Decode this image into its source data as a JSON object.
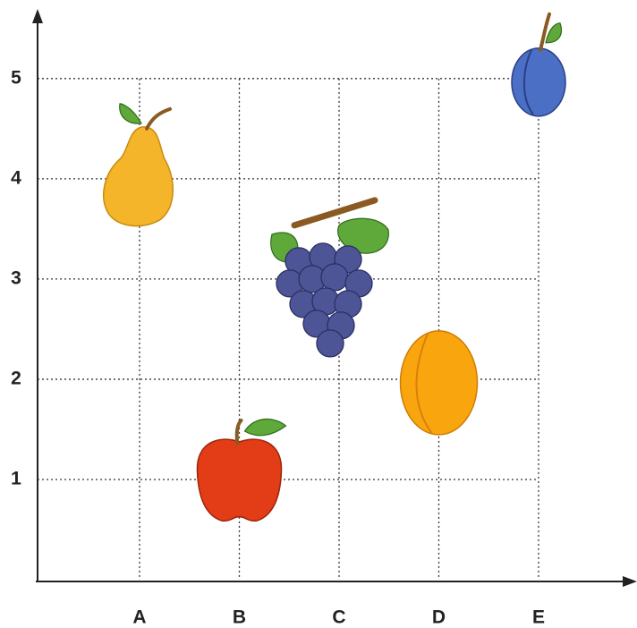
{
  "chart_data": {
    "type": "scatter",
    "categories": [
      "A",
      "B",
      "C",
      "D",
      "E"
    ],
    "values": [
      4,
      1,
      3,
      2,
      5
    ],
    "colors": [
      "#f4b52a",
      "#e33d17",
      "#4d5596",
      "#f9a60e",
      "#4a6fc4"
    ],
    "ylim": [
      0,
      5.65
    ],
    "yticks": [
      1,
      2,
      3,
      4,
      5
    ],
    "grid": true
  }
}
